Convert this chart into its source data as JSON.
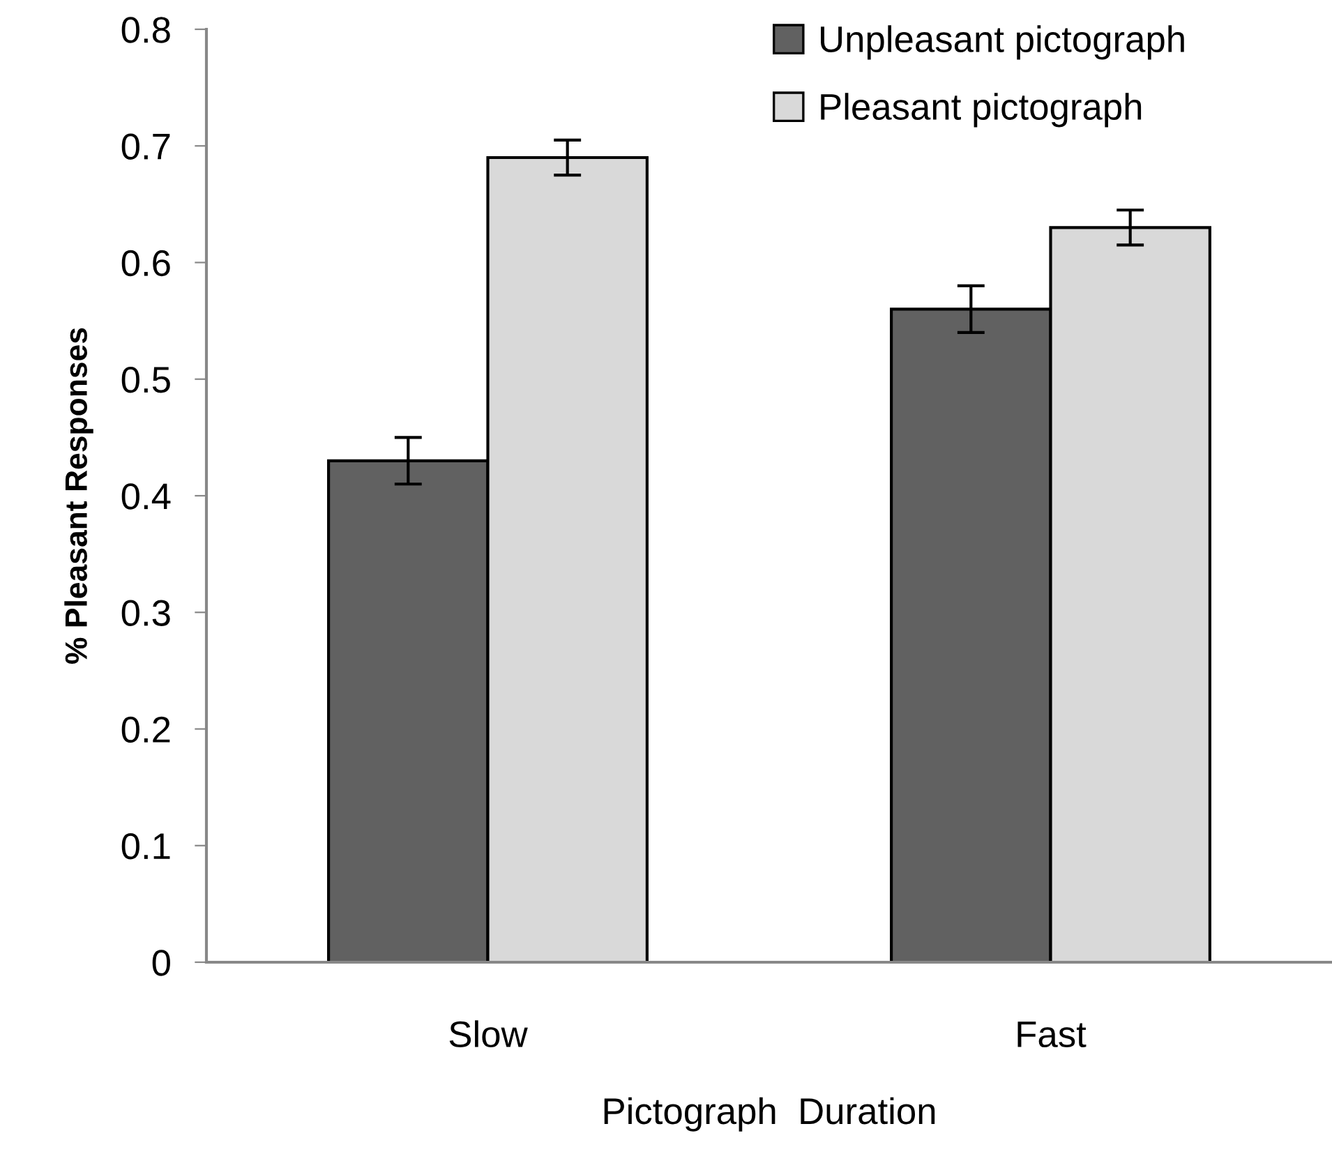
{
  "chart_data": {
    "type": "bar",
    "xlabel": "Pictograph  Duration",
    "ylabel": "% Pleasant Responses",
    "categories": [
      "Slow",
      "Fast"
    ],
    "series": [
      {
        "name": "Unpleasant pictograph",
        "color": "#616161",
        "values": [
          0.43,
          0.56
        ],
        "errors": [
          0.02,
          0.02
        ]
      },
      {
        "name": "Pleasant pictograph",
        "color": "#d9d9d9",
        "values": [
          0.69,
          0.63
        ],
        "errors": [
          0.015,
          0.015
        ]
      }
    ],
    "ylim": [
      0,
      0.8
    ],
    "yticks": [
      0,
      0.1,
      0.2,
      0.3,
      0.4,
      0.5,
      0.6,
      0.7,
      0.8
    ],
    "grid": false,
    "legend": "top right"
  }
}
